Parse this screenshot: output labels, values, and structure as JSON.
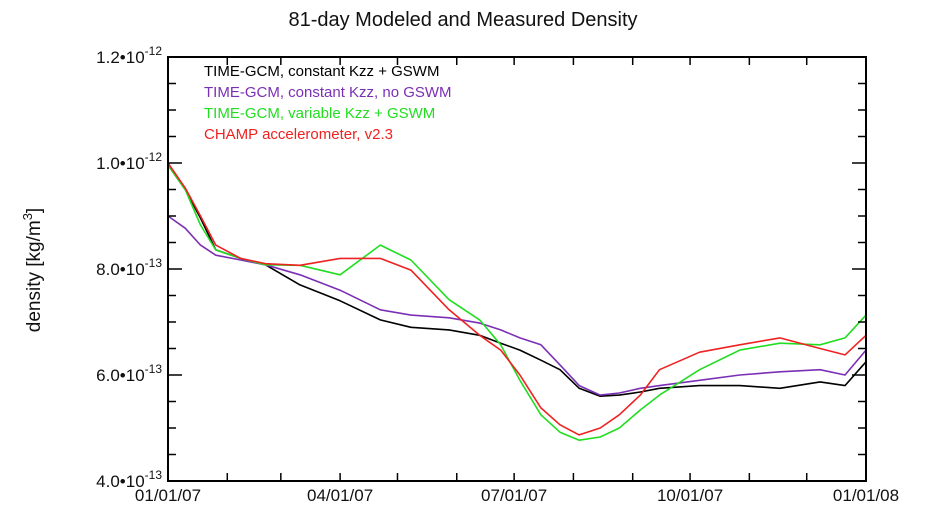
{
  "chart_data": {
    "type": "line",
    "title": "81-day Modeled and Measured Density",
    "xlabel": "",
    "ylabel": "density [kg/m3]",
    "ylabel_parts": {
      "main": "density [kg/m",
      "sup": "3",
      "end": "]"
    },
    "xlim": [
      "2007-01-01",
      "2008-01-01"
    ],
    "ylim": [
      4e-13,
      1.2e-12
    ],
    "x_ticks": [
      {
        "date": "2007-01-01",
        "label": "01/01/07"
      },
      {
        "date": "2007-04-01",
        "label": "04/01/07"
      },
      {
        "date": "2007-07-01",
        "label": "07/01/07"
      },
      {
        "date": "2007-10-01",
        "label": "10/01/07"
      },
      {
        "date": "2008-01-01",
        "label": "01/01/08"
      }
    ],
    "y_ticks": [
      {
        "value": 4e-13,
        "mantissa": "4.0•10",
        "exp": "-13"
      },
      {
        "value": 6e-13,
        "mantissa": "6.0•10",
        "exp": "-13"
      },
      {
        "value": 8e-13,
        "mantissa": "8.0•10",
        "exp": "-13"
      },
      {
        "value": 1e-12,
        "mantissa": "1.0•10",
        "exp": "-12"
      },
      {
        "value": 1.2e-12,
        "mantissa": "1.2•10",
        "exp": "-12"
      }
    ],
    "grid": false,
    "legend_position": "top-left",
    "x": [
      "2007-01-01",
      "2007-01-10",
      "2007-01-18",
      "2007-01-26",
      "2007-02-08",
      "2007-02-21",
      "2007-03-11",
      "2007-04-01",
      "2007-04-22",
      "2007-05-08",
      "2007-05-28",
      "2007-06-13",
      "2007-06-24",
      "2007-07-04",
      "2007-07-15",
      "2007-07-25",
      "2007-08-04",
      "2007-08-15",
      "2007-08-25",
      "2007-09-05",
      "2007-09-15",
      "2007-10-06",
      "2007-10-27",
      "2007-11-17",
      "2007-12-08",
      "2007-12-21",
      "2008-01-01"
    ],
    "series": [
      {
        "name": "TIME-GCM, constant Kzz + GSWM",
        "color": "#000000",
        "values": [
          9.96e-13,
          9.5e-13,
          8.96e-13,
          8.36e-13,
          8.2e-13,
          8.08e-13,
          7.7e-13,
          7.4e-13,
          7.04e-13,
          6.9e-13,
          6.85e-13,
          6.75e-13,
          6.6e-13,
          6.47e-13,
          6.28e-13,
          6.1e-13,
          5.75e-13,
          5.6e-13,
          5.62e-13,
          5.68e-13,
          5.75e-13,
          5.8e-13,
          5.8e-13,
          5.75e-13,
          5.87e-13,
          5.8e-13,
          6.25e-13
        ]
      },
      {
        "name": "TIME-GCM, constant Kzz, no GSWM",
        "color": "#7b2fb5",
        "values": [
          9e-13,
          8.77e-13,
          8.45e-13,
          8.26e-13,
          8.17e-13,
          8.08e-13,
          7.89e-13,
          7.6e-13,
          7.23e-13,
          7.13e-13,
          7.08e-13,
          6.98e-13,
          6.85e-13,
          6.7e-13,
          6.57e-13,
          6.19e-13,
          5.8e-13,
          5.62e-13,
          5.66e-13,
          5.75e-13,
          5.8e-13,
          5.9e-13,
          6e-13,
          6.06e-13,
          6.1e-13,
          6e-13,
          6.47e-13
        ]
      },
      {
        "name": "TIME-GCM, variable Kzz + GSWM",
        "color": "#22dd22",
        "values": [
          9.96e-13,
          9.5e-13,
          8.83e-13,
          8.36e-13,
          8.2e-13,
          8.08e-13,
          8.07e-13,
          7.89e-13,
          8.45e-13,
          8.17e-13,
          7.42e-13,
          7.04e-13,
          6.57e-13,
          5.9e-13,
          5.25e-13,
          4.92e-13,
          4.77e-13,
          4.83e-13,
          5e-13,
          5.34e-13,
          5.62e-13,
          6.1e-13,
          6.47e-13,
          6.6e-13,
          6.57e-13,
          6.7e-13,
          7.13e-13
        ]
      },
      {
        "name": "CHAMP accelerometer, v2.3",
        "color": "#ee2222",
        "values": [
          1e-12,
          9.53e-13,
          9e-13,
          8.45e-13,
          8.2e-13,
          8.1e-13,
          8.07e-13,
          8.2e-13,
          8.2e-13,
          7.98e-13,
          7.23e-13,
          6.75e-13,
          6.47e-13,
          6e-13,
          5.38e-13,
          5.06e-13,
          4.87e-13,
          5e-13,
          5.25e-13,
          5.62e-13,
          6.1e-13,
          6.43e-13,
          6.57e-13,
          6.7e-13,
          6.5e-13,
          6.38e-13,
          6.75e-13
        ]
      }
    ]
  }
}
